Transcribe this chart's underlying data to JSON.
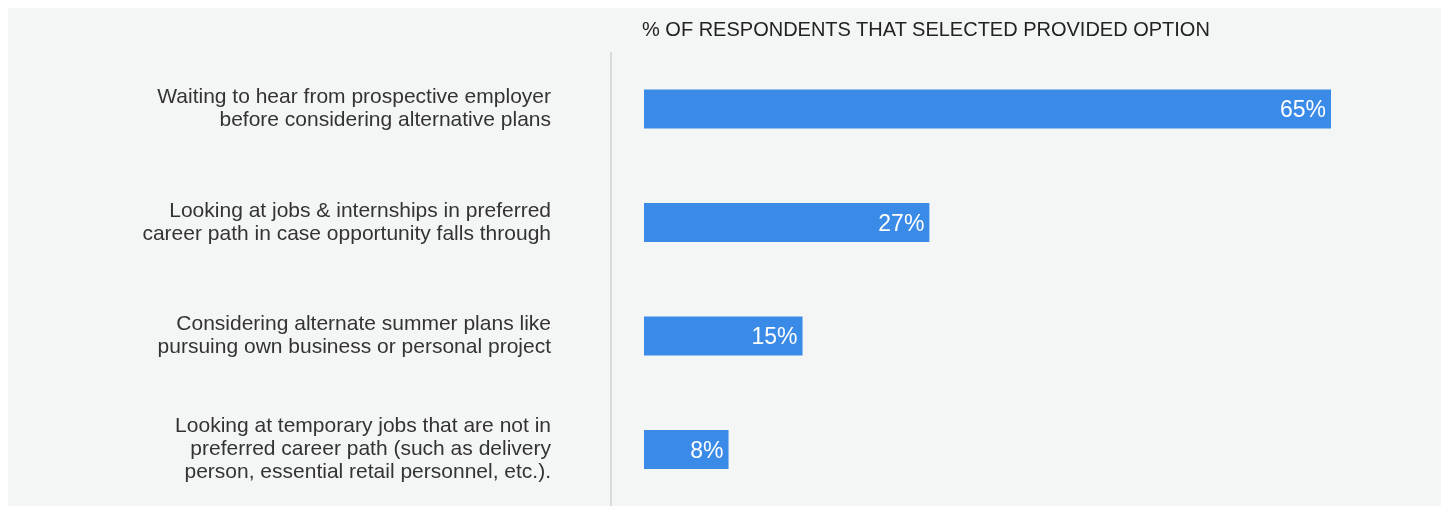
{
  "chart_data": {
    "type": "bar",
    "orientation": "horizontal",
    "title": "% OF RESPONDENTS THAT SELECTED PROVIDED OPTION",
    "categories": [
      "Waiting to hear from prospective employer before considering alternative plans",
      "Looking at jobs & internships in preferred career path in case opportunity falls through",
      "Considering alternate summer plans like pursuing own business or personal project",
      "Looking at temporary jobs that are not in preferred career path (such as delivery person, essential retail personnel, etc.)."
    ],
    "values": [
      65,
      27,
      15,
      8
    ],
    "value_labels": [
      "65%",
      "27%",
      "15%",
      "8%"
    ],
    "color": "#3a8ae8"
  }
}
